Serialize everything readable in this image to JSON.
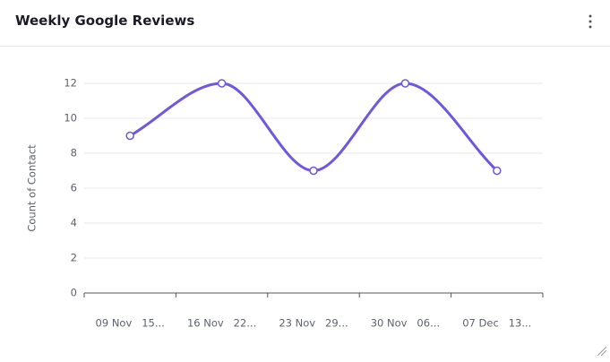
{
  "chart_data": {
    "type": "line",
    "title": "Weekly Google Reviews",
    "y_label": "Count of Contact",
    "categories": [
      "09 Nov   15...",
      "16 Nov   22...",
      "23 Nov   29...",
      "30 Nov   06...",
      "07 Dec   13..."
    ],
    "series": [
      {
        "name": "Count of Contact",
        "color": "#7057e0",
        "values": [
          9,
          12,
          7,
          12,
          7
        ]
      }
    ],
    "ylim": [
      0,
      12
    ],
    "yticks": [
      0,
      2,
      4,
      6,
      8,
      10,
      12
    ],
    "grid": true,
    "smooth": true
  }
}
